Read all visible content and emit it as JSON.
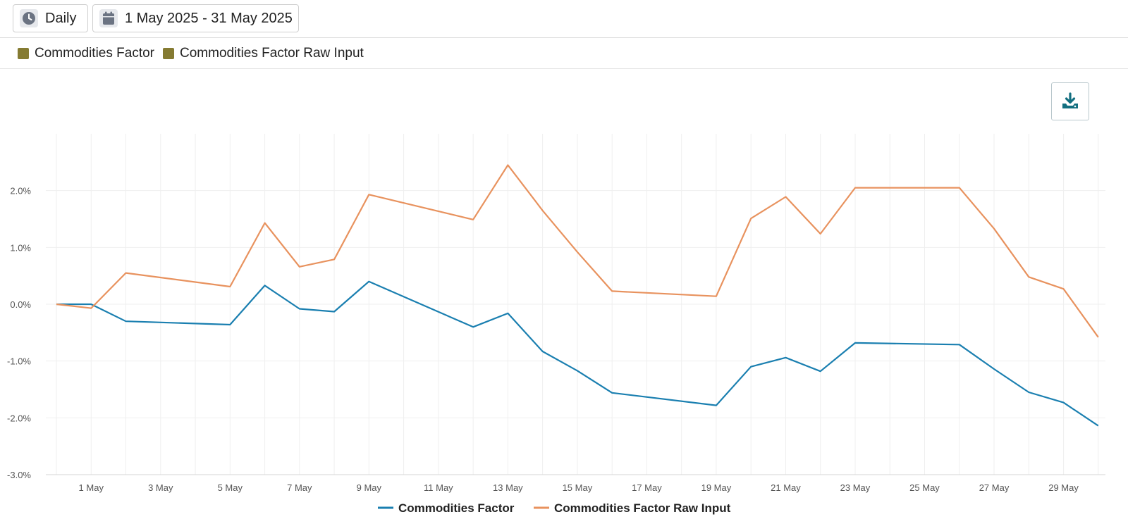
{
  "toolbar": {
    "interval_label": "Daily",
    "interval_icon": "clock-icon",
    "range_label": "1 May 2025 - 31 May 2025",
    "range_icon": "calendar-icon"
  },
  "legend": {
    "items": [
      {
        "label": "Commodities Factor",
        "color": "#857b32"
      },
      {
        "label": "Commodities Factor Raw Input",
        "color": "#857b32"
      }
    ]
  },
  "download": {
    "icon": "download-icon"
  },
  "chart_data": {
    "type": "line",
    "x_tick_labels": [
      "1 May",
      "3 May",
      "5 May",
      "7 May",
      "9 May",
      "11 May",
      "13 May",
      "15 May",
      "17 May",
      "19 May",
      "21 May",
      "23 May",
      "25 May",
      "27 May",
      "29 May"
    ],
    "y_tick_labels": [
      "2.0%",
      "1.0%",
      "0.0%",
      "-1.0%",
      "-2.0%",
      "-3.0%"
    ],
    "ylim": [
      -3.0,
      3.0
    ],
    "grid": true,
    "legend_placement": "bottom-center",
    "series": [
      {
        "name": "Commodities Factor",
        "color": "#1a7fb0",
        "points": [
          {
            "x": 0,
            "y": 0.0
          },
          {
            "x": 1,
            "y": 0.0
          },
          {
            "x": 2,
            "y": -0.3
          },
          {
            "x": 5,
            "y": -0.36
          },
          {
            "x": 6,
            "y": 0.33
          },
          {
            "x": 7,
            "y": -0.08
          },
          {
            "x": 8,
            "y": -0.13
          },
          {
            "x": 9,
            "y": 0.4
          },
          {
            "x": 12,
            "y": -0.4
          },
          {
            "x": 13,
            "y": -0.16
          },
          {
            "x": 14,
            "y": -0.83
          },
          {
            "x": 15,
            "y": -1.17
          },
          {
            "x": 16,
            "y": -1.56
          },
          {
            "x": 19,
            "y": -1.78
          },
          {
            "x": 20,
            "y": -1.1
          },
          {
            "x": 21,
            "y": -0.94
          },
          {
            "x": 22,
            "y": -1.18
          },
          {
            "x": 23,
            "y": -0.68
          },
          {
            "x": 26,
            "y": -0.71
          },
          {
            "x": 27,
            "y": -1.14
          },
          {
            "x": 28,
            "y": -1.55
          },
          {
            "x": 29,
            "y": -1.73
          },
          {
            "x": 30,
            "y": -2.14
          }
        ]
      },
      {
        "name": "Commodities Factor Raw Input",
        "color": "#e8925e",
        "points": [
          {
            "x": 0,
            "y": 0.0
          },
          {
            "x": 1,
            "y": -0.07
          },
          {
            "x": 2,
            "y": 0.55
          },
          {
            "x": 5,
            "y": 0.31
          },
          {
            "x": 6,
            "y": 1.43
          },
          {
            "x": 7,
            "y": 0.66
          },
          {
            "x": 8,
            "y": 0.79
          },
          {
            "x": 9,
            "y": 1.93
          },
          {
            "x": 12,
            "y": 1.49
          },
          {
            "x": 13,
            "y": 2.45
          },
          {
            "x": 14,
            "y": 1.65
          },
          {
            "x": 15,
            "y": 0.92
          },
          {
            "x": 16,
            "y": 0.23
          },
          {
            "x": 19,
            "y": 0.14
          },
          {
            "x": 20,
            "y": 1.51
          },
          {
            "x": 21,
            "y": 1.89
          },
          {
            "x": 22,
            "y": 1.24
          },
          {
            "x": 23,
            "y": 2.05
          },
          {
            "x": 26,
            "y": 2.05
          },
          {
            "x": 27,
            "y": 1.33
          },
          {
            "x": 28,
            "y": 0.48
          },
          {
            "x": 29,
            "y": 0.27
          },
          {
            "x": 30,
            "y": -0.58
          }
        ]
      }
    ]
  }
}
